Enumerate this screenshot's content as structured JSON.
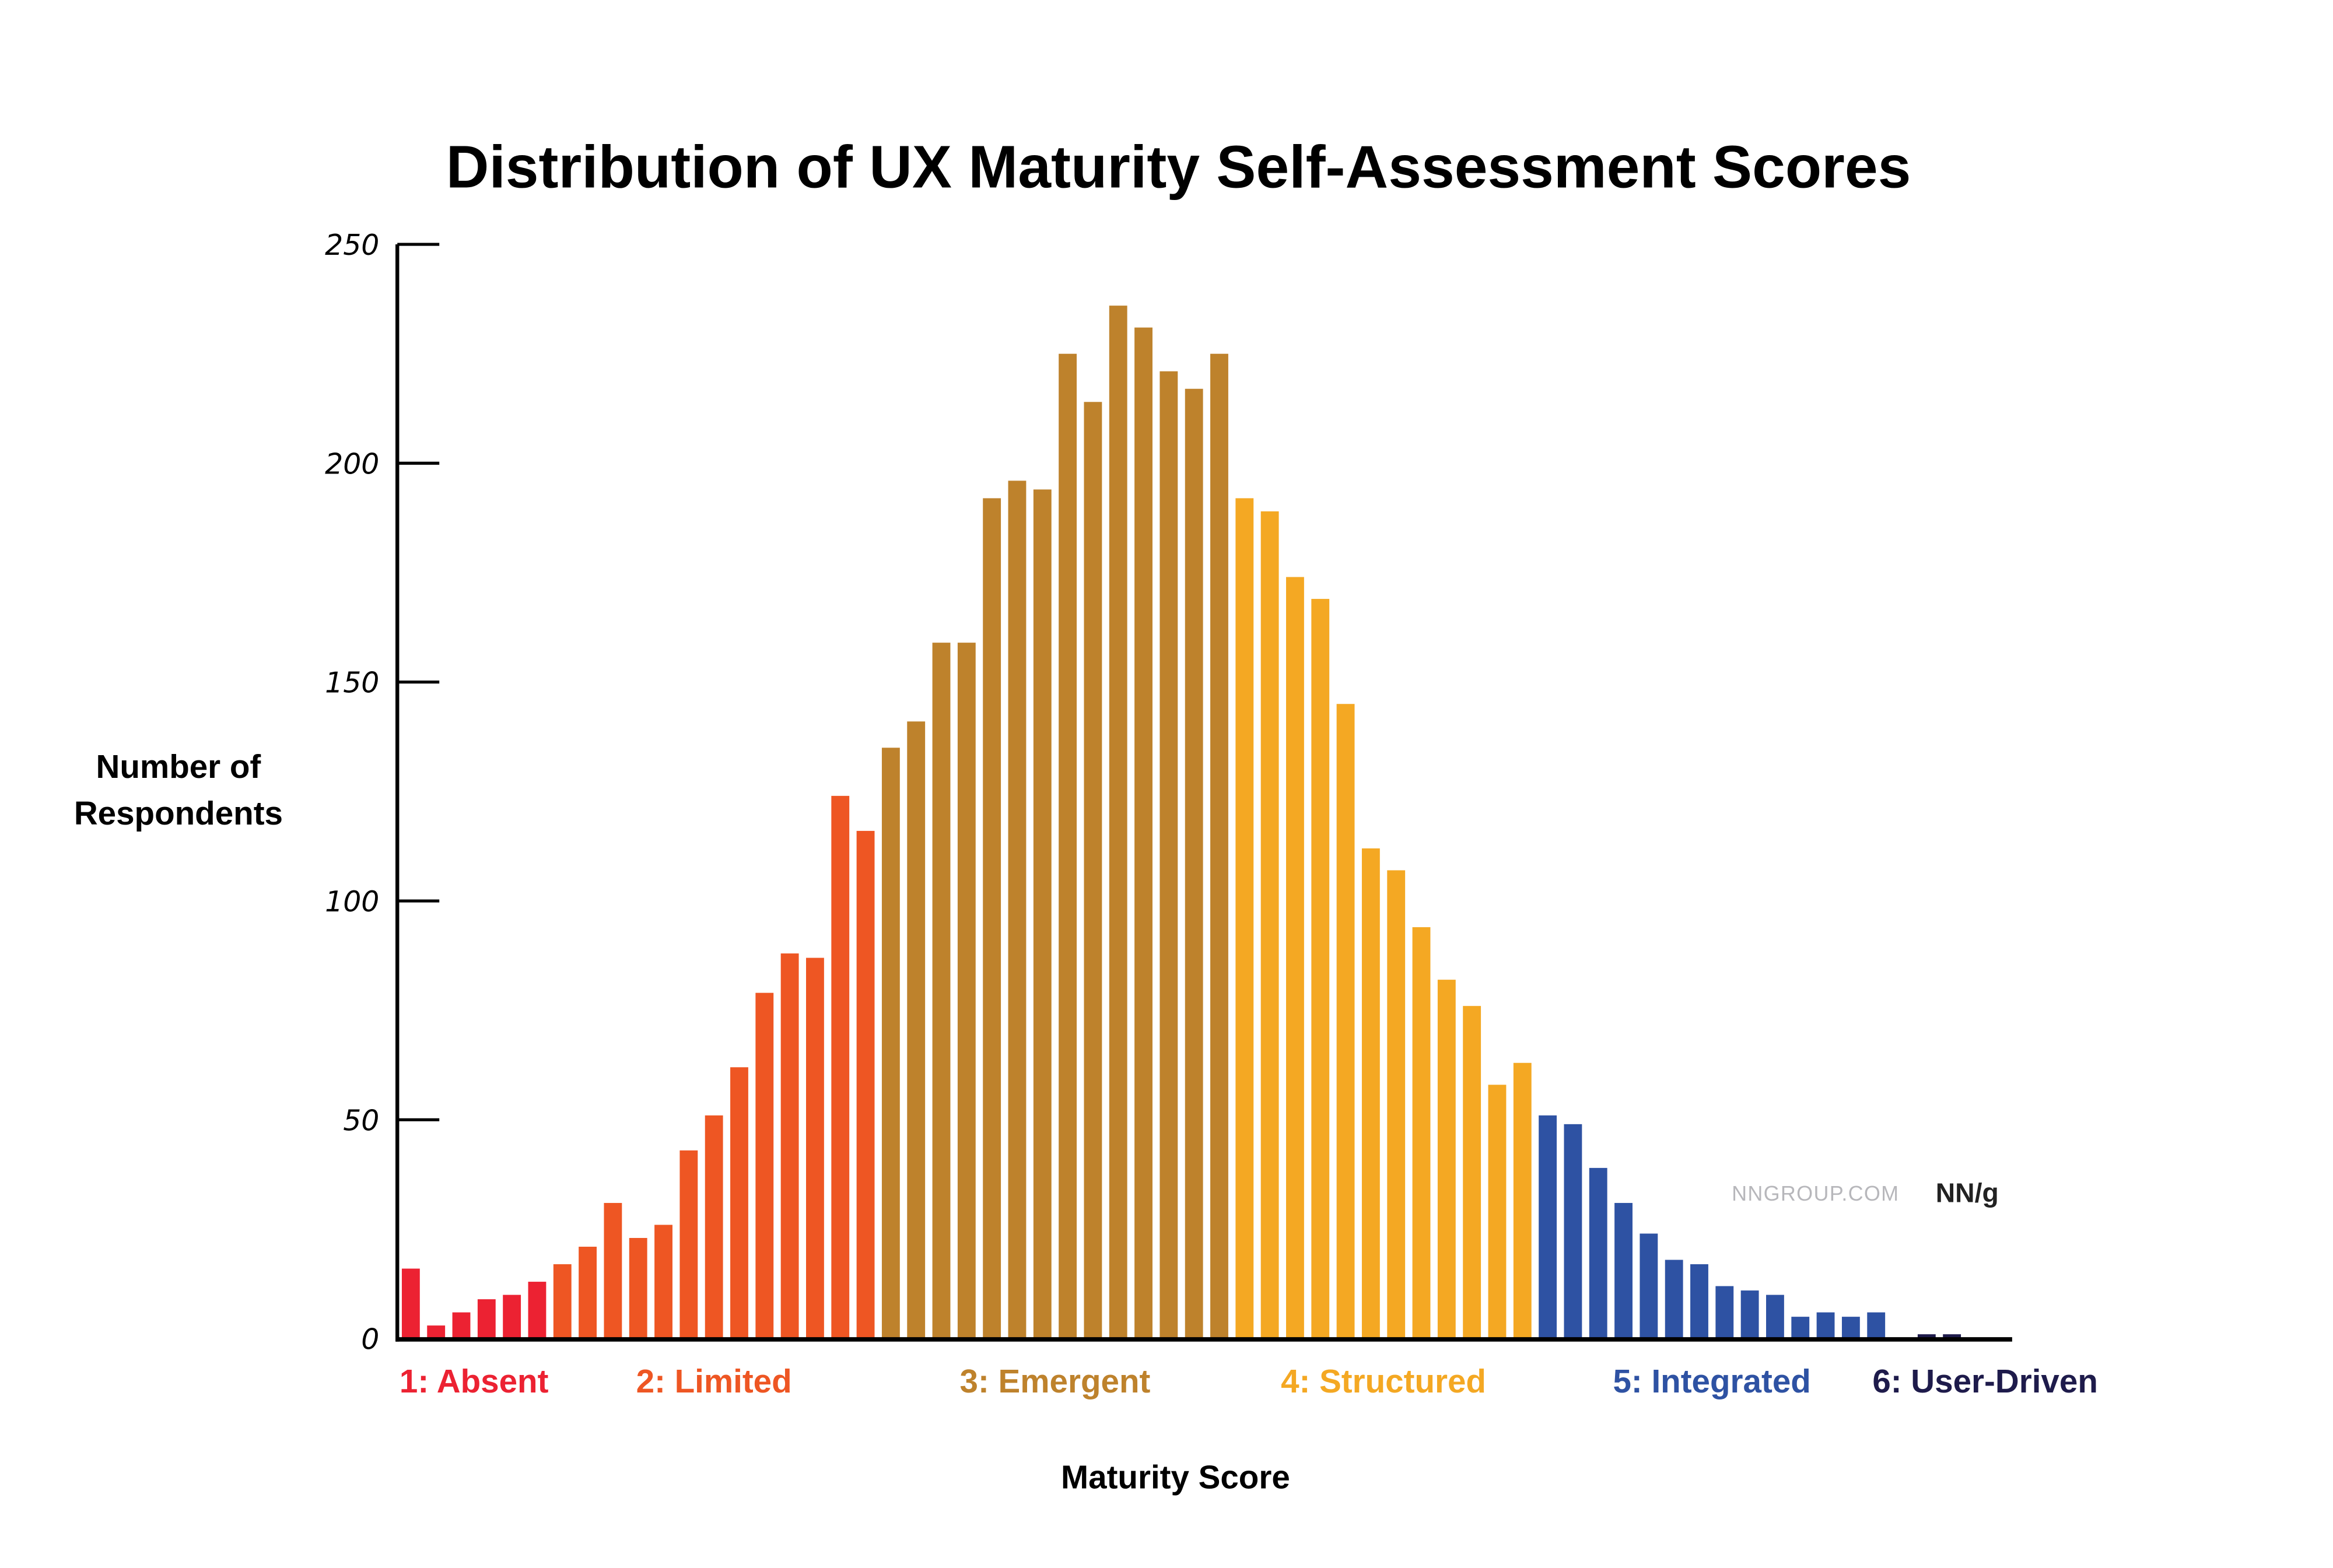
{
  "chart_data": {
    "type": "bar",
    "title": "Distribution of UX Maturity Self-Assessment Scores",
    "xlabel": "Maturity Score",
    "ylabel": "Number of Respondents",
    "ylim": [
      0,
      250
    ],
    "yticks": [
      "0",
      "50",
      "100",
      "150",
      "200",
      "250"
    ],
    "grid": false,
    "groups": [
      {
        "label": "1: Absent",
        "color": "#EC2232",
        "values": [
          16,
          3,
          6,
          9,
          10,
          13
        ]
      },
      {
        "label": "2: Limited",
        "color": "#EE5623",
        "values": [
          17,
          21,
          31,
          23,
          26,
          43,
          51,
          62,
          79,
          88,
          87,
          124,
          116
        ]
      },
      {
        "label": "3: Emergent",
        "color": "#BE822C",
        "values": [
          135,
          141,
          159,
          159,
          192,
          196,
          194,
          225,
          214,
          236,
          231,
          221,
          217,
          225
        ]
      },
      {
        "label": "4: Structured",
        "color": "#F4A823",
        "values": [
          192,
          189,
          174,
          169,
          145,
          112,
          107,
          94,
          82,
          76,
          58,
          63
        ]
      },
      {
        "label": "5: Integrated",
        "color": "#2E52A3",
        "values": [
          51,
          49,
          39,
          31,
          24,
          18,
          17,
          12,
          11,
          10,
          5,
          6,
          5,
          6
        ]
      },
      {
        "label": "6: User-Driven",
        "color": "#1E1B4B",
        "values": [
          0,
          1,
          1
        ]
      }
    ]
  },
  "watermark": {
    "site": "NNGROUP.COM",
    "logo": "NN/g"
  }
}
